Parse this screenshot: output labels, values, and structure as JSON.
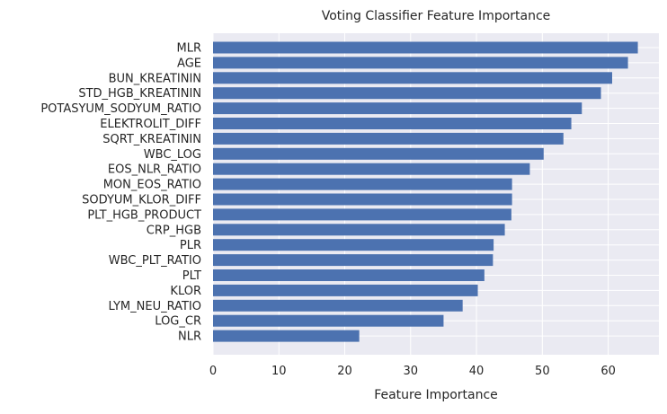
{
  "chart_data": {
    "type": "bar",
    "orientation": "horizontal",
    "title": "Voting Classifier Feature Importance",
    "xlabel": "Feature Importance",
    "ylabel": "",
    "categories": [
      "MLR",
      "AGE",
      "BUN_KREATININ",
      "STD_HGB_KREATININ",
      "POTASYUM_SODYUM_RATIO",
      "ELEKTROLIT_DIFF",
      "SQRT_KREATININ",
      "WBC_LOG",
      "EOS_NLR_RATIO",
      "MON_EOS_RATIO",
      "SODYUM_KLOR_DIFF",
      "PLT_HGB_PRODUCT",
      "CRP_HGB",
      "PLR",
      "WBC_PLT_RATIO",
      "PLT",
      "KLOR",
      "LYM_NEU_RATIO",
      "LOG_CR",
      "NLR"
    ],
    "values": [
      64.5,
      63.0,
      60.6,
      58.9,
      56.0,
      54.4,
      53.2,
      50.2,
      48.1,
      45.4,
      45.4,
      45.3,
      44.3,
      42.6,
      42.5,
      41.2,
      40.2,
      37.9,
      35.0,
      22.2
    ],
    "xlim": [
      0,
      67.7
    ],
    "xticks": [
      0,
      10,
      20,
      30,
      40,
      50,
      60
    ],
    "grid": true,
    "colors": {
      "bar": "#4c72b0",
      "plot_background": "#eaeaf2",
      "grid": "#ffffff",
      "text": "#262626"
    }
  }
}
